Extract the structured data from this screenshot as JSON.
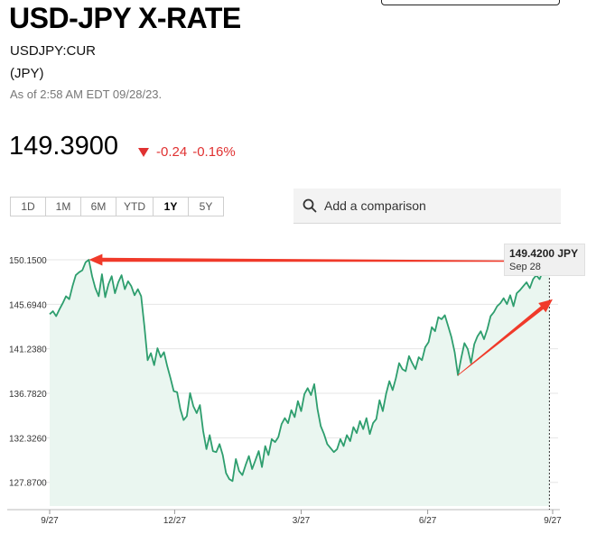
{
  "header": {
    "title": "USD-JPY X-RATE",
    "ticker": "USDJPY:CUR",
    "currency": "(JPY)",
    "as_of": "As of 2:58 AM EDT 09/28/23."
  },
  "quote": {
    "price": "149.3900",
    "change": "-0.24",
    "change_pct": "-0.16%",
    "change_color": "#e03131"
  },
  "periods": [
    {
      "label": "1D",
      "active": false
    },
    {
      "label": "1M",
      "active": false
    },
    {
      "label": "6M",
      "active": false
    },
    {
      "label": "YTD",
      "active": false
    },
    {
      "label": "1Y",
      "active": true
    },
    {
      "label": "5Y",
      "active": false
    }
  ],
  "compare": {
    "label": "Add a comparison",
    "icon": "search-icon"
  },
  "tooltip": {
    "value": "149.4200 JPY",
    "date": "Sep 28"
  },
  "colors": {
    "line": "#2e9e6e",
    "fill": "#eaf6f0",
    "arrow": "#f03a2a",
    "grid": "#e6e6e6"
  },
  "chart_data": {
    "type": "line",
    "x_ticks": [
      "9/27",
      "12/27",
      "3/27",
      "6/27",
      "9/27"
    ],
    "y_ticks": [
      "150.1500",
      "145.6940",
      "141.2380",
      "136.7820",
      "132.3260",
      "127.8700"
    ],
    "ylim": [
      125.5,
      151.5
    ],
    "grid": true,
    "series": [
      {
        "values": [
          [
            0,
            144.7
          ],
          [
            2,
            145.0
          ],
          [
            4,
            144.5
          ],
          [
            6,
            145.2
          ],
          [
            8,
            145.8
          ],
          [
            10,
            146.5
          ],
          [
            12,
            146.2
          ],
          [
            14,
            147.5
          ],
          [
            16,
            148.6
          ],
          [
            18,
            148.9
          ],
          [
            20,
            149.1
          ],
          [
            22,
            149.9
          ],
          [
            24,
            150.15
          ],
          [
            26,
            148.5
          ],
          [
            28,
            147.3
          ],
          [
            30,
            146.5
          ],
          [
            32,
            148.7
          ],
          [
            34,
            146.4
          ],
          [
            36,
            147.7
          ],
          [
            38,
            148.5
          ],
          [
            40,
            146.8
          ],
          [
            42,
            147.9
          ],
          [
            44,
            148.6
          ],
          [
            46,
            147.2
          ],
          [
            48,
            148.0
          ],
          [
            50,
            147.5
          ],
          [
            52,
            146.6
          ],
          [
            54,
            147.2
          ],
          [
            56,
            146.5
          ],
          [
            58,
            143.5
          ],
          [
            60,
            140.1
          ],
          [
            62,
            140.8
          ],
          [
            64,
            139.6
          ],
          [
            66,
            141.3
          ],
          [
            68,
            140.4
          ],
          [
            70,
            140.9
          ],
          [
            72,
            139.5
          ],
          [
            74,
            138.3
          ],
          [
            76,
            137.0
          ],
          [
            78,
            136.9
          ],
          [
            80,
            135.2
          ],
          [
            82,
            134.1
          ],
          [
            84,
            134.5
          ],
          [
            86,
            136.8
          ],
          [
            88,
            135.5
          ],
          [
            90,
            134.8
          ],
          [
            92,
            135.6
          ],
          [
            94,
            133.0
          ],
          [
            96,
            131.2
          ],
          [
            98,
            132.6
          ],
          [
            100,
            131.0
          ],
          [
            102,
            130.9
          ],
          [
            104,
            131.7
          ],
          [
            106,
            130.6
          ],
          [
            108,
            128.8
          ],
          [
            110,
            128.2
          ],
          [
            112,
            128.0
          ],
          [
            114,
            130.2
          ],
          [
            116,
            129.0
          ],
          [
            118,
            128.6
          ],
          [
            120,
            129.6
          ],
          [
            122,
            130.5
          ],
          [
            124,
            129.2
          ],
          [
            126,
            130.1
          ],
          [
            128,
            131.0
          ],
          [
            130,
            129.4
          ],
          [
            132,
            131.5
          ],
          [
            134,
            130.6
          ],
          [
            136,
            132.2
          ],
          [
            138,
            131.9
          ],
          [
            140,
            132.4
          ],
          [
            142,
            133.7
          ],
          [
            144,
            134.3
          ],
          [
            146,
            133.8
          ],
          [
            148,
            135.1
          ],
          [
            150,
            134.4
          ],
          [
            152,
            136.0
          ],
          [
            154,
            135.0
          ],
          [
            156,
            136.7
          ],
          [
            158,
            137.3
          ],
          [
            160,
            136.6
          ],
          [
            162,
            137.7
          ],
          [
            164,
            135.2
          ],
          [
            166,
            133.5
          ],
          [
            168,
            132.7
          ],
          [
            170,
            131.7
          ],
          [
            172,
            131.3
          ],
          [
            174,
            130.9
          ],
          [
            176,
            131.2
          ],
          [
            178,
            132.2
          ],
          [
            180,
            131.5
          ],
          [
            182,
            132.6
          ],
          [
            184,
            132.0
          ],
          [
            186,
            133.4
          ],
          [
            188,
            132.8
          ],
          [
            190,
            134.0
          ],
          [
            192,
            133.2
          ],
          [
            194,
            134.3
          ],
          [
            196,
            132.7
          ],
          [
            198,
            133.8
          ],
          [
            200,
            134.2
          ],
          [
            202,
            136.1
          ],
          [
            204,
            135.0
          ],
          [
            206,
            136.7
          ],
          [
            208,
            138.0
          ],
          [
            210,
            137.1
          ],
          [
            212,
            138.3
          ],
          [
            214,
            139.8
          ],
          [
            216,
            139.2
          ],
          [
            218,
            139.0
          ],
          [
            220,
            140.5
          ],
          [
            222,
            139.8
          ],
          [
            224,
            139.2
          ],
          [
            226,
            140.4
          ],
          [
            228,
            140.1
          ],
          [
            230,
            141.4
          ],
          [
            232,
            141.9
          ],
          [
            234,
            143.4
          ],
          [
            236,
            143.0
          ],
          [
            238,
            144.4
          ],
          [
            240,
            144.2
          ],
          [
            242,
            144.6
          ],
          [
            244,
            143.5
          ],
          [
            246,
            142.4
          ],
          [
            248,
            140.9
          ],
          [
            250,
            138.6
          ],
          [
            252,
            140.3
          ],
          [
            254,
            141.8
          ],
          [
            256,
            141.2
          ],
          [
            258,
            139.8
          ],
          [
            260,
            141.7
          ],
          [
            262,
            142.5
          ],
          [
            264,
            143.0
          ],
          [
            266,
            142.2
          ],
          [
            268,
            143.2
          ],
          [
            270,
            144.5
          ],
          [
            272,
            144.9
          ],
          [
            274,
            145.5
          ],
          [
            276,
            145.8
          ],
          [
            278,
            146.3
          ],
          [
            280,
            145.7
          ],
          [
            282,
            146.6
          ],
          [
            284,
            145.5
          ],
          [
            286,
            146.8
          ],
          [
            288,
            147.1
          ],
          [
            290,
            147.5
          ],
          [
            292,
            147.9
          ],
          [
            294,
            147.3
          ],
          [
            296,
            148.2
          ],
          [
            298,
            148.6
          ],
          [
            300,
            148.2
          ],
          [
            302,
            149.0
          ],
          [
            304,
            149.6
          ],
          [
            306,
            149.42
          ]
        ]
      }
    ],
    "marker": {
      "x": 306,
      "y": 149.42
    },
    "annotations": [
      {
        "type": "arrow",
        "from": [
          306,
          150.0
        ],
        "to": [
          24,
          150.15
        ]
      },
      {
        "type": "arrow",
        "from": [
          250,
          138.6
        ],
        "to": [
          308,
          146.2
        ]
      }
    ]
  }
}
